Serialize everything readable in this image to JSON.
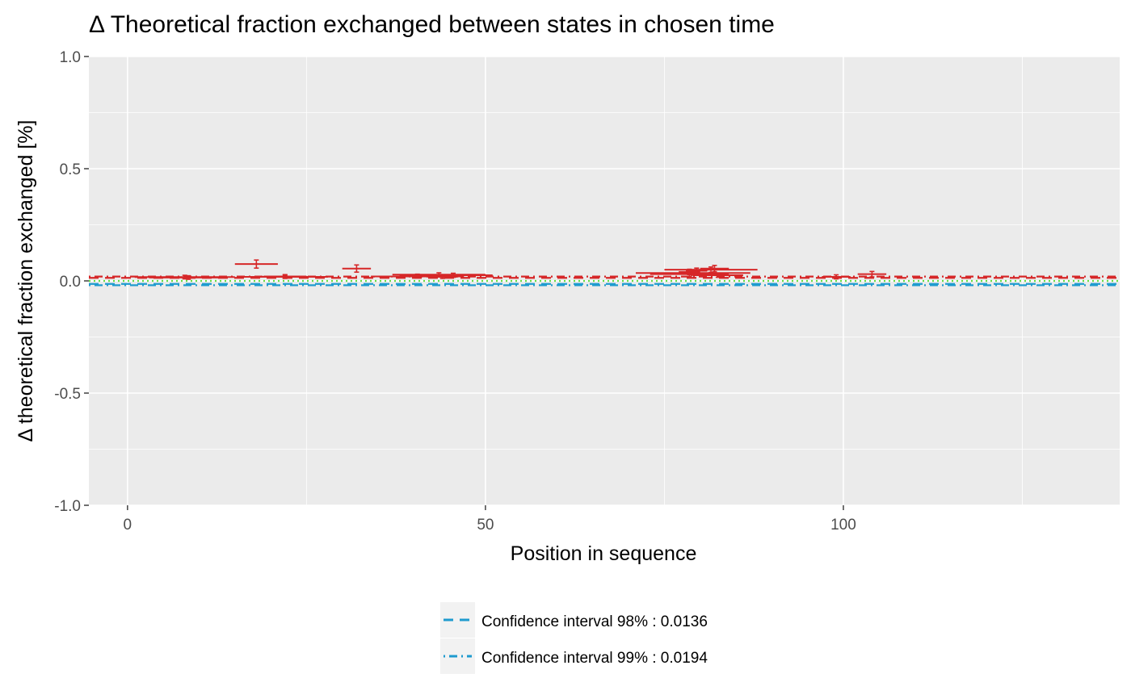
{
  "chart_data": {
    "type": "scatter",
    "title": "Δ Theoretical fraction exchanged between states in chosen time",
    "xlabel": "Position in sequence",
    "ylabel": "Δ theoretical fraction exchanged [%]",
    "xlim": [
      -5.4,
      138.6
    ],
    "ylim": [
      -1.0,
      1.0
    ],
    "x_ticks": [
      0,
      50,
      100
    ],
    "x_tick_labels": [
      "0",
      "50",
      "100"
    ],
    "y_ticks": [
      -1.0,
      -0.5,
      0.0,
      0.5,
      1.0
    ],
    "y_tick_labels": [
      "-1.0",
      "-0.5",
      "0.0",
      "0.5",
      "1.0"
    ],
    "grid": true,
    "legend_position": "bottom",
    "colors": {
      "panel": "#ebebeb",
      "grid": "#ffffff",
      "peptide": "#d62728",
      "ci": "#1f9bcf",
      "zero": "#66dd44"
    },
    "thresholds": [
      {
        "label": "Confidence interval 98% : 0.0136",
        "value": 0.0136,
        "style": "dashed"
      },
      {
        "label": "Confidence interval 99% : 0.0194",
        "value": 0.0194,
        "style": "dotdash"
      }
    ],
    "peptides": [
      {
        "start": 1,
        "end": 15,
        "value": 0.017,
        "error": 0.008
      },
      {
        "start": 3,
        "end": 14,
        "value": 0.015,
        "error": 0.008
      },
      {
        "start": 15,
        "end": 21,
        "value": 0.075,
        "error": 0.018
      },
      {
        "start": 16,
        "end": 28,
        "value": 0.018,
        "error": 0.007
      },
      {
        "start": 19,
        "end": 25,
        "value": 0.02,
        "error": 0.008
      },
      {
        "start": 30,
        "end": 34,
        "value": 0.055,
        "error": 0.016
      },
      {
        "start": 34,
        "end": 47,
        "value": 0.02,
        "error": 0.007
      },
      {
        "start": 37,
        "end": 50,
        "value": 0.028,
        "error": 0.008
      },
      {
        "start": 38,
        "end": 43,
        "value": 0.022,
        "error": 0.008
      },
      {
        "start": 40,
        "end": 51,
        "value": 0.025,
        "error": 0.009
      },
      {
        "start": 42,
        "end": 46,
        "value": 0.018,
        "error": 0.007
      },
      {
        "start": 71,
        "end": 87,
        "value": 0.035,
        "error": 0.01
      },
      {
        "start": 73,
        "end": 84,
        "value": 0.03,
        "error": 0.01
      },
      {
        "start": 75,
        "end": 88,
        "value": 0.05,
        "error": 0.012
      },
      {
        "start": 77,
        "end": 80,
        "value": 0.04,
        "error": 0.012
      },
      {
        "start": 78,
        "end": 81,
        "value": 0.045,
        "error": 0.012
      },
      {
        "start": 79,
        "end": 86,
        "value": 0.025,
        "error": 0.009
      },
      {
        "start": 80,
        "end": 84,
        "value": 0.055,
        "error": 0.014
      },
      {
        "start": 97,
        "end": 101,
        "value": 0.018,
        "error": 0.009
      },
      {
        "start": 102,
        "end": 106,
        "value": 0.03,
        "error": 0.012
      }
    ]
  }
}
